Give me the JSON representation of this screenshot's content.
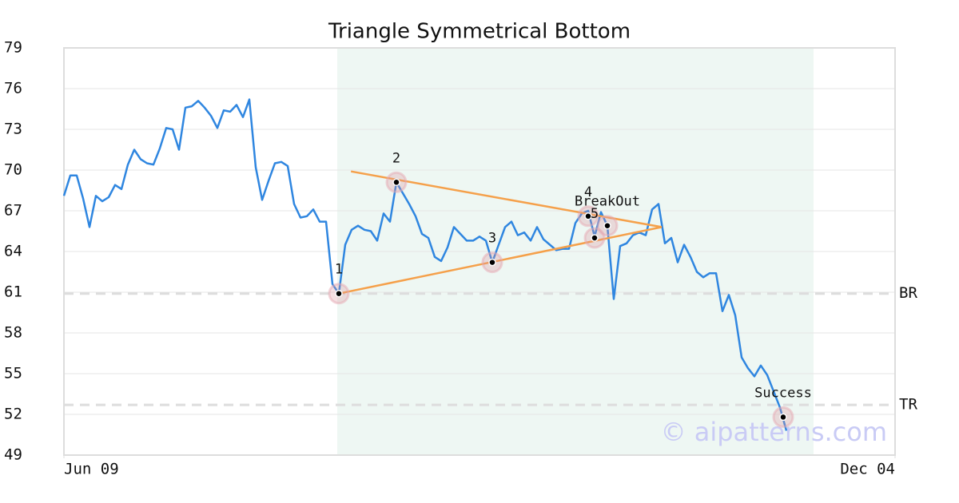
{
  "chart_data": {
    "type": "line",
    "title": "Triangle Symmetrical Bottom",
    "watermark": "© aipatterns.com",
    "color": "#2f86e0",
    "grid": true,
    "values": [
      68.1,
      69.6,
      69.6,
      67.9,
      65.8,
      68.1,
      67.7,
      68.0,
      68.9,
      68.6,
      70.4,
      71.5,
      70.8,
      70.5,
      70.4,
      71.6,
      73.1,
      73.0,
      71.5,
      74.6,
      74.7,
      75.1,
      74.6,
      74.0,
      73.1,
      74.4,
      74.3,
      74.8,
      73.9,
      75.2,
      70.2,
      67.8,
      69.2,
      70.5,
      70.6,
      70.3,
      67.5,
      66.5,
      66.6,
      67.1,
      66.2,
      66.2,
      61.6,
      60.9,
      64.5,
      65.6,
      65.9,
      65.6,
      65.5,
      64.8,
      66.8,
      66.2,
      69.1,
      68.3,
      67.5,
      66.6,
      65.3,
      65.0,
      63.6,
      63.3,
      64.3,
      65.8,
      65.3,
      64.8,
      64.8,
      65.1,
      64.8,
      63.2,
      64.5,
      65.8,
      66.2,
      65.2,
      65.4,
      64.8,
      65.8,
      64.9,
      64.5,
      64.1,
      64.2,
      64.2,
      66.1,
      66.8,
      67.0,
      65.1,
      66.9,
      65.9,
      60.5,
      64.4,
      64.6,
      65.2,
      65.4,
      65.2,
      67.1,
      67.5,
      64.6,
      65.0,
      63.2,
      64.5,
      63.6,
      62.5,
      62.1,
      62.4,
      62.4,
      59.6,
      60.8,
      59.3,
      56.2,
      55.4,
      54.8,
      55.6,
      54.9,
      53.7,
      52.5,
      50.8
    ],
    "xlim": [
      0,
      130
    ],
    "xticks": [
      {
        "value": 0,
        "label": "Jun 09"
      },
      {
        "value": 130,
        "label": "Dec 04"
      }
    ],
    "ylim": [
      49,
      79
    ],
    "yticks": [
      49,
      52,
      55,
      58,
      61,
      64,
      67,
      70,
      73,
      76,
      79
    ],
    "highlight": [
      42.75,
      117.25
    ],
    "highlight_color": "#eef7f3",
    "levels": [
      {
        "label": "BR",
        "value": 60.9
      },
      {
        "label": "TR",
        "value": 52.7
      }
    ],
    "trendline_color": "#f5a04a",
    "trendlines": [
      {
        "x": [
          44.9,
          93.5
        ],
        "y": [
          69.9,
          65.8
        ]
      },
      {
        "x": [
          43,
          93.5
        ],
        "y": [
          60.9,
          65.8
        ]
      }
    ],
    "markers": [
      {
        "label": "1",
        "x": 43,
        "y": 60.9
      },
      {
        "label": "2",
        "x": 52,
        "y": 69.1
      },
      {
        "label": "3",
        "x": 67,
        "y": 63.2
      },
      {
        "label": "4",
        "x": 82,
        "y": 66.6
      },
      {
        "label": "5",
        "x": 83,
        "y": 65.0
      },
      {
        "label": "BreakOut",
        "x": 85,
        "y": 65.9
      },
      {
        "label": "Success",
        "x": 112.5,
        "y": 51.8
      }
    ]
  }
}
